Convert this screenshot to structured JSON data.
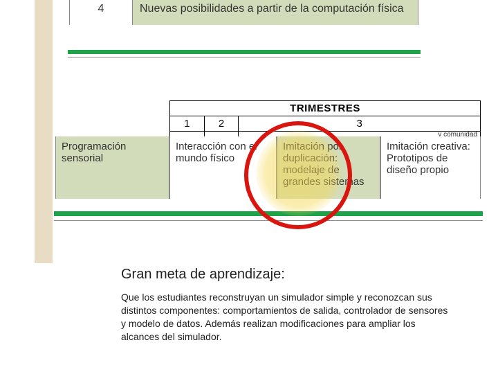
{
  "colors": {
    "green_bar": "#1ea24a",
    "cell_olive": "#d3dcba",
    "tan_strip": "#e8dcc4",
    "circle_red": "#d9150f",
    "glow_yellow": "rgba(245,215,80,0.5)",
    "border_gray": "#888888",
    "text": "#333333",
    "background": "#ffffff"
  },
  "top_row": {
    "number": "4",
    "description": "Nuevas posibilidades a partir de la computación física"
  },
  "trimestres": {
    "header": "TRIMESTRES",
    "labels": [
      "1",
      "2",
      "3"
    ],
    "partial_text": "y comunidad"
  },
  "content_row": [
    "Programación sensorial",
    "Interacción con el mundo físico",
    "Imitación por duplicación: modelaje de grandes sistemas",
    "Imitación creativa: Prototipos de diseño propio"
  ],
  "highlight_index": 2,
  "goal": {
    "title": "Gran meta de aprendizaje:",
    "body": "Que los estudiantes reconstruyan un simulador simple y reconozcan sus distintos componentes: comportamientos de salida, controlador de sensores y modelo de datos. Además realizan modificaciones para ampliar los alcances del simulador."
  }
}
